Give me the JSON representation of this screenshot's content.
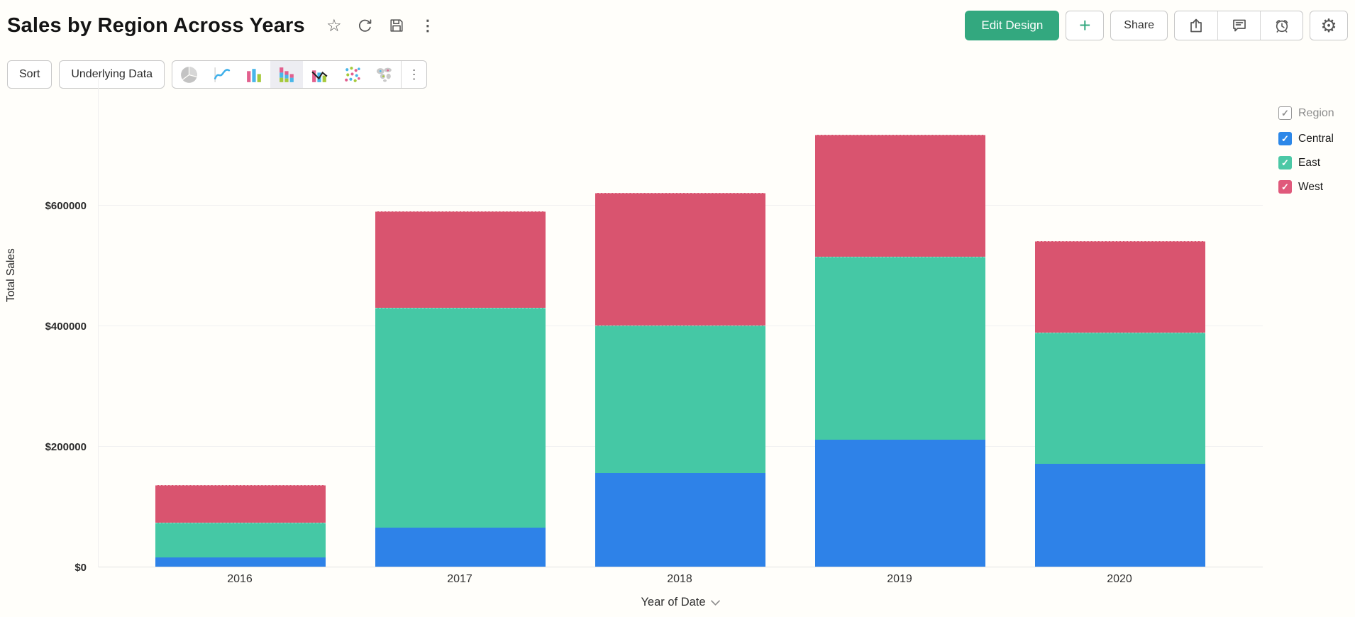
{
  "header": {
    "title": "Sales by Region Across Years",
    "title_icons": [
      "star",
      "refresh",
      "save",
      "more"
    ],
    "actions": {
      "edit_design_label": "Edit Design",
      "plus_label": "+",
      "share_label": "Share",
      "icon_buttons": [
        "export",
        "comment",
        "alarm",
        "settings"
      ]
    },
    "accent_color": "#33a87f"
  },
  "toolbar": {
    "sort_label": "Sort",
    "underlying_data_label": "Underlying Data",
    "chart_types": [
      "pie",
      "line",
      "bar",
      "stacked-bar",
      "combo",
      "scatter",
      "map"
    ],
    "selected_chart_type": "stacked-bar",
    "more_icon": "kebab"
  },
  "legend": {
    "title": "Region",
    "check_glyph": "✓",
    "items": [
      {
        "label": "Central",
        "color": "#2c87e8",
        "checked": true
      },
      {
        "label": "East",
        "color": "#4cc8a6",
        "checked": true
      },
      {
        "label": "West",
        "color": "#e0597b",
        "checked": true
      }
    ]
  },
  "chart_data": {
    "type": "bar",
    "stacked": true,
    "title": "Sales by Region Across Years",
    "categories": [
      "2016",
      "2017",
      "2018",
      "2019",
      "2020"
    ],
    "series": [
      {
        "name": "Central",
        "color": "#2e82e8",
        "values": [
          15000,
          65000,
          155000,
          210000,
          170000
        ]
      },
      {
        "name": "East",
        "color": "#45c8a5",
        "values": [
          58000,
          365000,
          245000,
          303000,
          218000
        ]
      },
      {
        "name": "West",
        "color": "#d9546f",
        "values": [
          62000,
          160000,
          220000,
          202000,
          152000
        ]
      }
    ],
    "totals": [
      135000,
      590000,
      620000,
      715000,
      540000
    ],
    "xlabel": "Year of Date",
    "ylabel": "Total Sales",
    "yticks": [
      {
        "label": "$0",
        "value": 0
      },
      {
        "label": "$200000",
        "value": 200000
      },
      {
        "label": "$400000",
        "value": 400000
      },
      {
        "label": "$600000",
        "value": 600000
      }
    ],
    "ylim": [
      0,
      811000
    ],
    "grid": true,
    "legend_position": "right"
  }
}
